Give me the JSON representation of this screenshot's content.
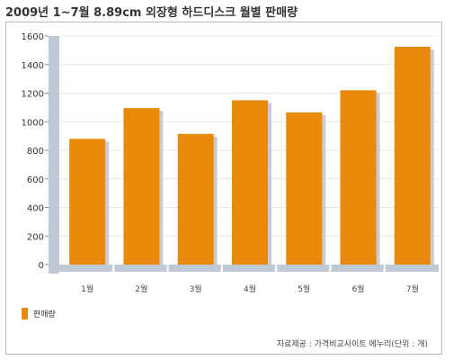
{
  "title": "2009년 1~7월 8.89cm 외장형 하드디스크 월별 판매량",
  "source": "자료제공 : 가격비교사이트 에누리(단위 : 개)",
  "colors": {
    "bar": "#E8890A",
    "bar_shadow": "#C9CDD2",
    "axis": "#BFCAD6",
    "grid": "#E6E6E6"
  },
  "chart_data": {
    "type": "bar",
    "title": "2009년 1~7월 8.89cm 외장형 하드디스크 월별 판매량",
    "categories": [
      "1월",
      "2월",
      "3월",
      "4월",
      "5월",
      "6월",
      "7월"
    ],
    "series": [
      {
        "name": "판매량",
        "values": [
          880,
          1095,
          915,
          1150,
          1065,
          1220,
          1525
        ]
      }
    ],
    "yticks": [
      0,
      200,
      400,
      600,
      800,
      1000,
      1200,
      1400,
      1600
    ],
    "ylim": [
      0,
      1600
    ],
    "grid": true,
    "legend": "bottom-left"
  }
}
